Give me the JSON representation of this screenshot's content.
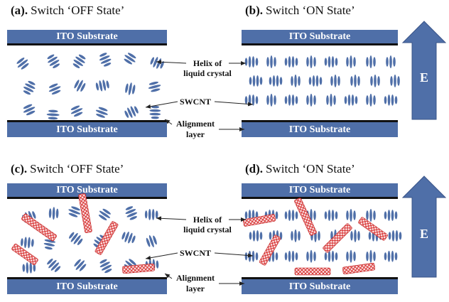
{
  "panels": [
    {
      "label": "(a).",
      "title": "Switch ‘OFF State’",
      "top_substrate": "ITO Substrate",
      "bottom_substrate": "ITO Substrate"
    },
    {
      "label": "(b).",
      "title": "Switch ‘ON State’",
      "top_substrate": "ITO Substrate",
      "bottom_substrate": "ITO Substrate"
    },
    {
      "label": "(c).",
      "title": "Switch ‘OFF State’",
      "top_substrate": "ITO Substrate",
      "bottom_substrate": "ITO Substrate"
    },
    {
      "label": "(d).",
      "title": "Switch ‘ON State’",
      "top_substrate": "ITO Substrate",
      "bottom_substrate": "ITO Substrate"
    }
  ],
  "annotations": [
    {
      "helix": [
        "Helix of",
        "liquid crystal"
      ],
      "swcnt": "SWCNT",
      "alignment": [
        "Alignment",
        "layer"
      ]
    },
    {
      "helix": [
        "Helix of",
        "liquid crystal"
      ],
      "swcnt": "SWCNT",
      "alignment": [
        "Alignment",
        "layer"
      ]
    }
  ],
  "field_labels": [
    "E",
    "E"
  ]
}
